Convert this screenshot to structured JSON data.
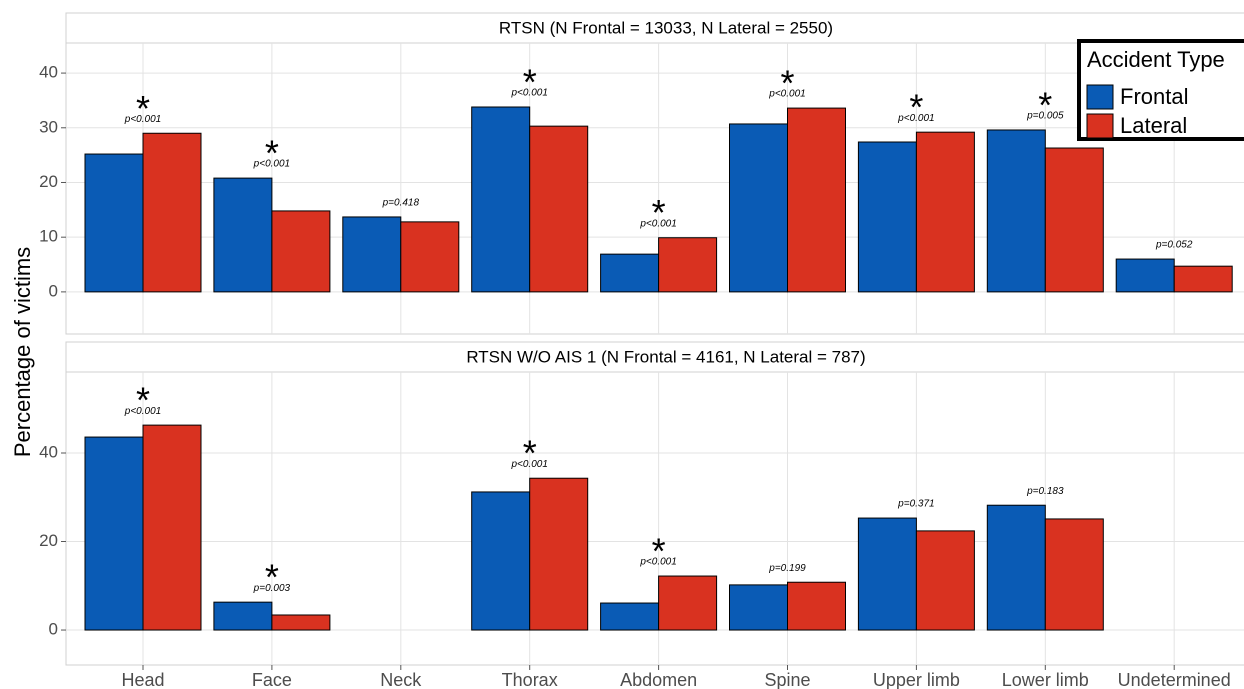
{
  "chart_data": {
    "type": "bar",
    "ylabel": "Percentage of victims",
    "legend_title": "Accident Type",
    "legend": "right-top",
    "grid": true,
    "categories": [
      "Head",
      "Face",
      "Neck",
      "Thorax",
      "Abdomen",
      "Spine",
      "Upper limb",
      "Lower limb",
      "Undetermined"
    ],
    "series": [
      {
        "name": "Frontal",
        "color": "#0a5bb5"
      },
      {
        "name": "Lateral",
        "color": "#d93220"
      }
    ],
    "facets": [
      {
        "title": "RTSN (N Frontal = 13033, N Lateral = 2550)",
        "ylim": [
          -7.7,
          45.5
        ],
        "yticks": [
          0,
          10,
          20,
          30,
          40
        ],
        "values": [
          [
            25.2,
            20.8,
            13.7,
            33.8,
            6.9,
            30.7,
            27.4,
            29.6,
            6.0
          ],
          [
            29.0,
            14.8,
            12.8,
            30.3,
            9.9,
            33.6,
            29.2,
            26.3,
            4.7
          ]
        ],
        "p_labels": [
          "p<0.001",
          "p<0.001",
          "p=0.418",
          "p<0.001",
          "p<0.001",
          "p<0.001",
          "p<0.001",
          "p=0.005",
          "p=0.052"
        ],
        "stars": [
          "*",
          "*",
          null,
          "*",
          "*",
          "*",
          "*",
          "*",
          null
        ]
      },
      {
        "title": "RTSN W/O AIS 1 (N Frontal = 4161, N Lateral = 787)",
        "ylim": [
          -7.9,
          58.3
        ],
        "yticks": [
          0,
          20,
          40
        ],
        "values": [
          [
            43.6,
            6.3,
            null,
            31.2,
            6.1,
            10.2,
            25.3,
            28.2,
            null
          ],
          [
            46.3,
            3.4,
            null,
            34.3,
            12.2,
            10.8,
            22.4,
            25.1,
            null
          ]
        ],
        "p_labels": [
          "p<0.001",
          "p=0.003",
          null,
          "p<0.001",
          "p<0.001",
          "p=0.199",
          "p=0.371",
          "p=0.183",
          null
        ],
        "stars": [
          "*",
          "*",
          null,
          "*",
          "*",
          null,
          null,
          null,
          null
        ]
      }
    ]
  }
}
